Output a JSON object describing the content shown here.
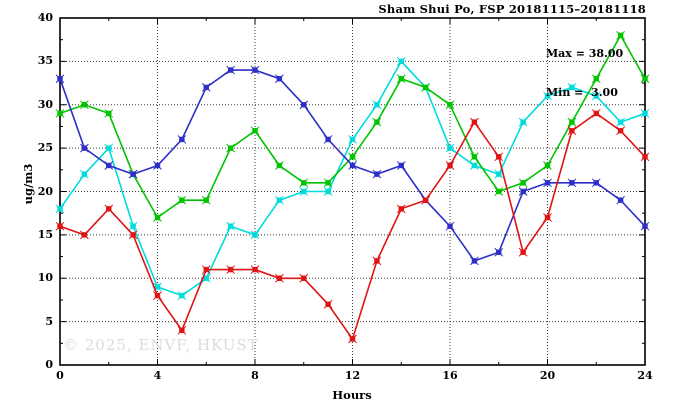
{
  "title": "Sham Shui Po, FSP 20181115–20181118",
  "annotation": {
    "max": "Max = 38.00",
    "min": "Min =  3.00"
  },
  "watermark": "© 2025, ENVF, HKUST",
  "chart_data": {
    "type": "line",
    "title": "Sham Shui Po, FSP 20181115–20181118",
    "xlabel": "Hours",
    "ylabel": "ug/m3",
    "xlim": [
      0,
      24
    ],
    "ylim": [
      0,
      40
    ],
    "x_ticks": [
      0,
      4,
      8,
      12,
      16,
      20,
      24
    ],
    "y_ticks": [
      0,
      5,
      10,
      15,
      20,
      25,
      30,
      35,
      40
    ],
    "x_minor_step": 2,
    "y_minor_step": 2.5,
    "grid": true,
    "legend": "none",
    "x": [
      0,
      1,
      2,
      3,
      4,
      5,
      6,
      7,
      8,
      9,
      10,
      11,
      12,
      13,
      14,
      15,
      16,
      17,
      18,
      19,
      20,
      21,
      22,
      23,
      24
    ],
    "series": [
      {
        "name": "series-cyan",
        "color": "#00dcdc",
        "values": [
          18,
          22,
          25,
          16,
          9,
          8,
          10,
          16,
          15,
          19,
          20,
          20,
          26,
          30,
          35,
          32,
          25,
          23,
          22,
          28,
          31,
          32,
          31,
          28,
          29
        ]
      },
      {
        "name": "series-green",
        "color": "#00c400",
        "values": [
          29,
          30,
          29,
          22,
          17,
          19,
          19,
          25,
          27,
          23,
          21,
          21,
          24,
          28,
          33,
          32,
          30,
          24,
          20,
          21,
          23,
          28,
          33,
          38,
          33
        ]
      },
      {
        "name": "series-blue",
        "color": "#2e2ec8",
        "values": [
          33,
          25,
          23,
          22,
          23,
          26,
          32,
          34,
          34,
          33,
          30,
          26,
          23,
          22,
          23,
          19,
          16,
          12,
          13,
          20,
          21,
          21,
          21,
          19,
          16
        ]
      },
      {
        "name": "series-red",
        "color": "#e01414",
        "values": [
          16,
          15,
          18,
          15,
          8,
          4,
          11,
          11,
          11,
          10,
          10,
          7,
          3,
          12,
          18,
          19,
          23,
          28,
          24,
          13,
          17,
          27,
          29,
          27,
          24
        ]
      }
    ],
    "stats": {
      "max": 38.0,
      "min": 3.0
    }
  }
}
